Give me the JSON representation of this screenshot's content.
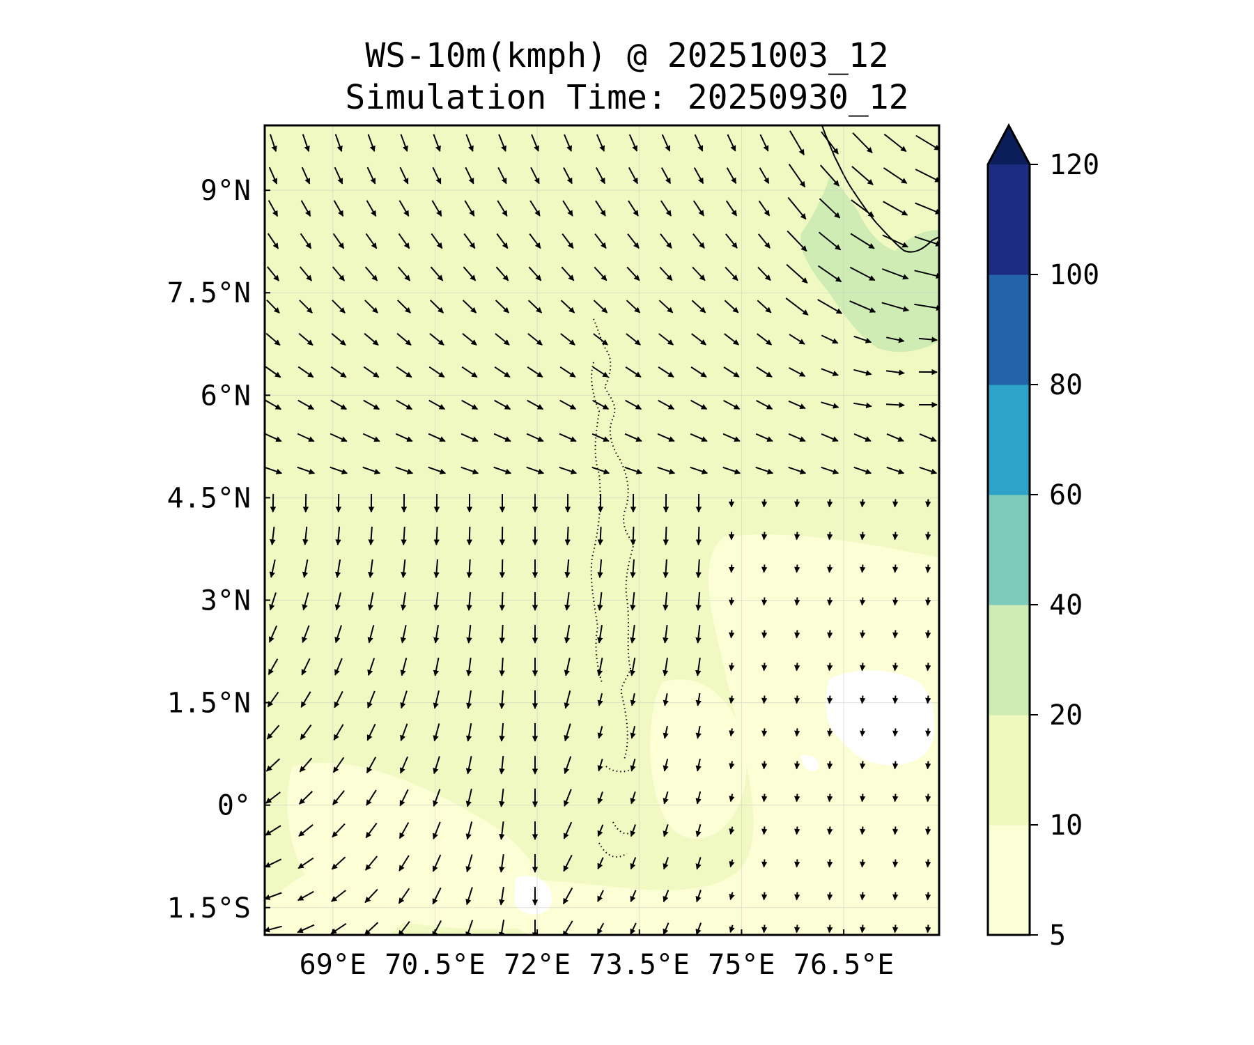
{
  "title": {
    "line1": "WS-10m(kmph) @ 20251003_12",
    "line2": "Simulation Time: 20250930_12"
  },
  "map": {
    "x_ticks": [
      {
        "value": 69.0,
        "label": "69°E"
      },
      {
        "value": 70.5,
        "label": "70.5°E"
      },
      {
        "value": 72.0,
        "label": "72°E"
      },
      {
        "value": 73.5,
        "label": "73.5°E"
      },
      {
        "value": 75.0,
        "label": "75°E"
      },
      {
        "value": 76.5,
        "label": "76.5°E"
      }
    ],
    "y_ticks": [
      {
        "value": 9.0,
        "label": "9°N"
      },
      {
        "value": 7.5,
        "label": "7.5°N"
      },
      {
        "value": 6.0,
        "label": "6°N"
      },
      {
        "value": 4.5,
        "label": "4.5°N"
      },
      {
        "value": 3.0,
        "label": "3°N"
      },
      {
        "value": 1.5,
        "label": "1.5°N"
      },
      {
        "value": 0.0,
        "label": "0°"
      },
      {
        "value": -1.5,
        "label": "1.5°S"
      }
    ],
    "lon_range": [
      68.0,
      77.9
    ],
    "lat_range": [
      -1.9,
      9.95
    ],
    "background_color": "#f1f9c3"
  },
  "colorbar": {
    "levels": [
      "5",
      "10",
      "20",
      "40",
      "60",
      "80",
      "100",
      "120"
    ],
    "colors": [
      "#fcfed5",
      "#eff8bd",
      "#cfecb5",
      "#7ecabb",
      "#2ea2c8",
      "#2363a8",
      "#1c2c82"
    ],
    "extend_color": "#0b1e59"
  }
}
